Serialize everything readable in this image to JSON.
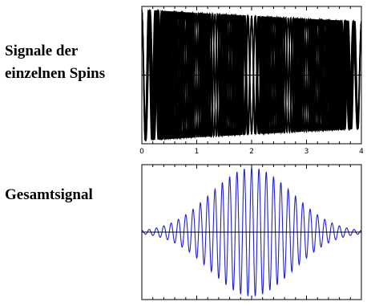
{
  "labels": {
    "top_line1": "Signale der",
    "top_line2": "einzelnen Spins",
    "bottom": "Gesamtsignal"
  },
  "colors": {
    "spins": "#000000",
    "sum": "#2222cc",
    "frame": "#000000"
  },
  "chart_data": [
    {
      "type": "line",
      "title": "Signale der einzelnen Spins",
      "xlabel": "",
      "ylabel": "",
      "xlim": [
        0,
        4
      ],
      "ylim": [
        -1.05,
        1.05
      ],
      "x_ticks": [
        0,
        1,
        2,
        3,
        4
      ],
      "grid": false,
      "legend": "none",
      "description_of_series": "Many superimposed cosine signals of slightly different frequencies (about 6.5 to 8.5 cycles per unit) with slowly decaying amplitude",
      "series_model": {
        "function": "cos(2*pi*f*x) * exp(-x/20)",
        "frequencies": [
          6.5,
          6.75,
          7.0,
          7.25,
          7.5,
          7.75,
          8.0,
          8.25,
          8.5
        ],
        "x_range": [
          0,
          4
        ]
      }
    },
    {
      "type": "line",
      "title": "Gesamtsignal",
      "xlabel": "",
      "ylabel": "",
      "xlim": [
        0,
        4
      ],
      "ylim": [
        -1.05,
        1.05
      ],
      "x_ticks": [
        0,
        1,
        2,
        3,
        4
      ],
      "grid": false,
      "legend": "none",
      "description_of_series": "Sum of the individual spin signals: a beat/echo waveform of about 7.5 cycles per unit with a Gaussian envelope peaking near x = 2",
      "series_model": {
        "function": "cos(2*pi*f*(x-2)) * exp(-((x-2)/s)^2)",
        "frequency": 7.5,
        "center": 2.0,
        "s": 1.05,
        "x_range": [
          0,
          4
        ]
      }
    }
  ]
}
